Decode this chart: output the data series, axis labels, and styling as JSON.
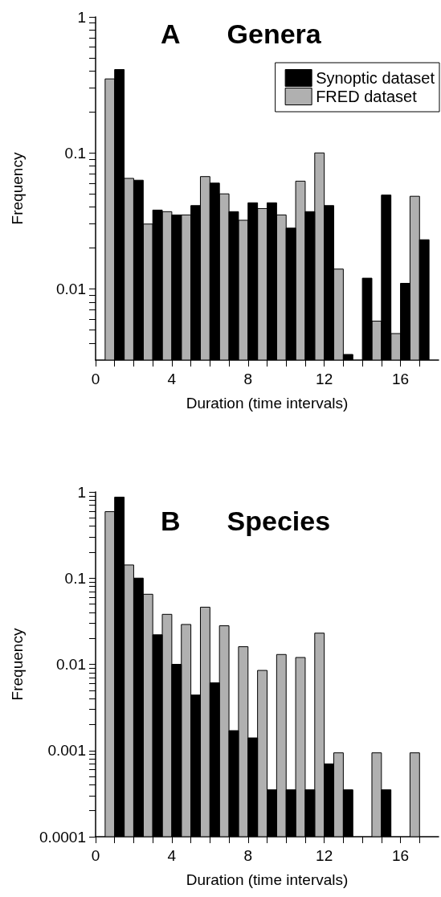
{
  "chart_data": [
    {
      "type": "bar",
      "title": "A Genera",
      "xlabel": "Duration (time intervals)",
      "ylabel": "Frequency",
      "log": "y",
      "x": [
        1,
        2,
        3,
        4,
        5,
        6,
        7,
        8,
        9,
        10,
        11,
        12,
        13,
        14,
        15,
        16,
        17
      ],
      "series": [
        {
          "name": "FRED dataset",
          "color": "#b0b0b0",
          "values": [
            0.35,
            0.065,
            0.03,
            0.037,
            0.035,
            0.067,
            0.05,
            0.032,
            0.039,
            0.035,
            0.062,
            0.1,
            0.014,
            null,
            0.0058,
            0.0047,
            0.048
          ]
        },
        {
          "name": "Synoptic dataset",
          "color": "#000000",
          "values": [
            0.41,
            0.063,
            0.038,
            0.035,
            0.041,
            0.06,
            0.037,
            0.043,
            0.043,
            0.028,
            0.037,
            0.041,
            0.0033,
            0.012,
            0.049,
            0.011,
            0.023
          ]
        }
      ],
      "xlim": [
        0,
        18
      ],
      "xticks": [
        0,
        {
          "value": 1,
          "label": null
        },
        {
          "value": 2,
          "label": null
        },
        {
          "value": 3,
          "label": null
        },
        4,
        {
          "value": 5,
          "label": null
        },
        {
          "value": 6,
          "label": null
        },
        {
          "value": 7,
          "label": null
        },
        8,
        {
          "value": 9,
          "label": null
        },
        {
          "value": 10,
          "label": null
        },
        {
          "value": 11,
          "label": null
        },
        12,
        {
          "value": 13,
          "label": null
        },
        {
          "value": 14,
          "label": null
        },
        {
          "value": 15,
          "label": null
        },
        16,
        {
          "value": 17,
          "label": null
        }
      ],
      "ylim": [
        0.003,
        1
      ],
      "yticks": [
        {
          "value": 0.004,
          "label": null
        },
        {
          "value": 0.005,
          "label": null
        },
        {
          "value": 0.006,
          "label": null
        },
        {
          "value": 0.007,
          "label": null
        },
        {
          "value": 0.008,
          "label": null
        },
        {
          "value": 0.009,
          "label": null
        },
        0.01,
        {
          "value": 0.02,
          "label": null
        },
        {
          "value": 0.03,
          "label": null
        },
        {
          "value": 0.04,
          "label": null
        },
        {
          "value": 0.05,
          "label": null
        },
        {
          "value": 0.06,
          "label": null
        },
        {
          "value": 0.07,
          "label": null
        },
        {
          "value": 0.08,
          "label": null
        },
        {
          "value": 0.09,
          "label": null
        },
        0.1,
        {
          "value": 0.2,
          "label": null
        },
        {
          "value": 0.3,
          "label": null
        },
        {
          "value": 0.4,
          "label": null
        },
        {
          "value": 0.5,
          "label": null
        },
        {
          "value": 0.6,
          "label": null
        },
        {
          "value": 0.7,
          "label": null
        },
        {
          "value": 0.8,
          "label": null
        },
        {
          "value": 0.9,
          "label": null
        },
        1
      ],
      "legend": "top right",
      "grid": false
    },
    {
      "type": "bar",
      "title": "B Species",
      "xlabel": "Duration (time intervals)",
      "ylabel": "Frequency",
      "log": "y",
      "x": [
        1,
        2,
        3,
        4,
        5,
        6,
        7,
        8,
        9,
        10,
        11,
        12,
        13,
        14,
        15,
        16,
        17
      ],
      "series": [
        {
          "color": "#b0b0b0",
          "values": [
            0.59,
            0.142,
            0.065,
            0.038,
            0.029,
            0.046,
            0.028,
            0.016,
            0.0085,
            0.013,
            0.012,
            0.023,
            0.00094,
            null,
            0.00094,
            null,
            0.00094
          ]
        },
        {
          "color": "#000000",
          "values": [
            0.87,
            0.1,
            0.022,
            0.01,
            0.0044,
            0.0061,
            0.0017,
            0.0014,
            0.00035,
            0.00035,
            0.00035,
            0.0007,
            0.00035,
            null,
            0.00035,
            null,
            null
          ]
        }
      ],
      "xlim": [
        0,
        18
      ],
      "xticks": [
        0,
        {
          "value": 1,
          "label": null
        },
        {
          "value": 2,
          "label": null
        },
        {
          "value": 3,
          "label": null
        },
        4,
        {
          "value": 5,
          "label": null
        },
        {
          "value": 6,
          "label": null
        },
        {
          "value": 7,
          "label": null
        },
        8,
        {
          "value": 9,
          "label": null
        },
        {
          "value": 10,
          "label": null
        },
        {
          "value": 11,
          "label": null
        },
        12,
        {
          "value": 13,
          "label": null
        },
        {
          "value": 14,
          "label": null
        },
        {
          "value": 15,
          "label": null
        },
        16,
        {
          "value": 17,
          "label": null
        }
      ],
      "ylim": [
        0.0001,
        1
      ],
      "yticks": [
        0.0001,
        {
          "value": 0.0002,
          "label": null
        },
        {
          "value": 0.0003,
          "label": null
        },
        {
          "value": 0.0004,
          "label": null
        },
        {
          "value": 0.0005,
          "label": null
        },
        {
          "value": 0.0006,
          "label": null
        },
        {
          "value": 0.0007,
          "label": null
        },
        {
          "value": 0.0008,
          "label": null
        },
        {
          "value": 0.0009,
          "label": null
        },
        0.001,
        {
          "value": 0.002,
          "label": null
        },
        {
          "value": 0.003,
          "label": null
        },
        {
          "value": 0.004,
          "label": null
        },
        {
          "value": 0.005,
          "label": null
        },
        {
          "value": 0.006,
          "label": null
        },
        {
          "value": 0.007,
          "label": null
        },
        {
          "value": 0.008,
          "label": null
        },
        {
          "value": 0.009,
          "label": null
        },
        0.01,
        {
          "value": 0.02,
          "label": null
        },
        {
          "value": 0.03,
          "label": null
        },
        {
          "value": 0.04,
          "label": null
        },
        {
          "value": 0.05,
          "label": null
        },
        {
          "value": 0.06,
          "label": null
        },
        {
          "value": 0.07,
          "label": null
        },
        {
          "value": 0.08,
          "label": null
        },
        {
          "value": 0.09,
          "label": null
        },
        0.1,
        {
          "value": 0.2,
          "label": null
        },
        {
          "value": 0.3,
          "label": null
        },
        {
          "value": 0.4,
          "label": null
        },
        {
          "value": 0.5,
          "label": null
        },
        {
          "value": 0.6,
          "label": null
        },
        {
          "value": 0.7,
          "label": null
        },
        {
          "value": 0.8,
          "label": null
        },
        {
          "value": 0.9,
          "label": null
        },
        1
      ],
      "legend": false,
      "grid": false
    }
  ]
}
